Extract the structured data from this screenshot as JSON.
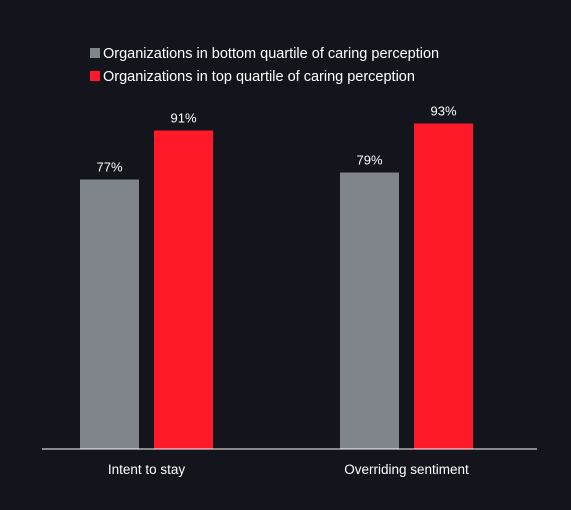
{
  "chart_data": {
    "type": "bar",
    "categories": [
      "Intent to stay",
      "Overriding sentiment"
    ],
    "series": [
      {
        "name": "Organizations in bottom quartile of caring perception",
        "values": [
          77,
          79
        ],
        "value_labels": [
          "77%",
          "79%"
        ],
        "color": "#80858b"
      },
      {
        "name": "Organizations in top quartile of caring perception",
        "values": [
          91,
          93
        ],
        "value_labels": [
          "91%",
          "93%"
        ],
        "color": "#ff1929"
      }
    ],
    "legend_position": "top-left",
    "grid": false,
    "background": "#14141c",
    "text_color": "#ffffff",
    "axis_color": "#ffffff"
  }
}
